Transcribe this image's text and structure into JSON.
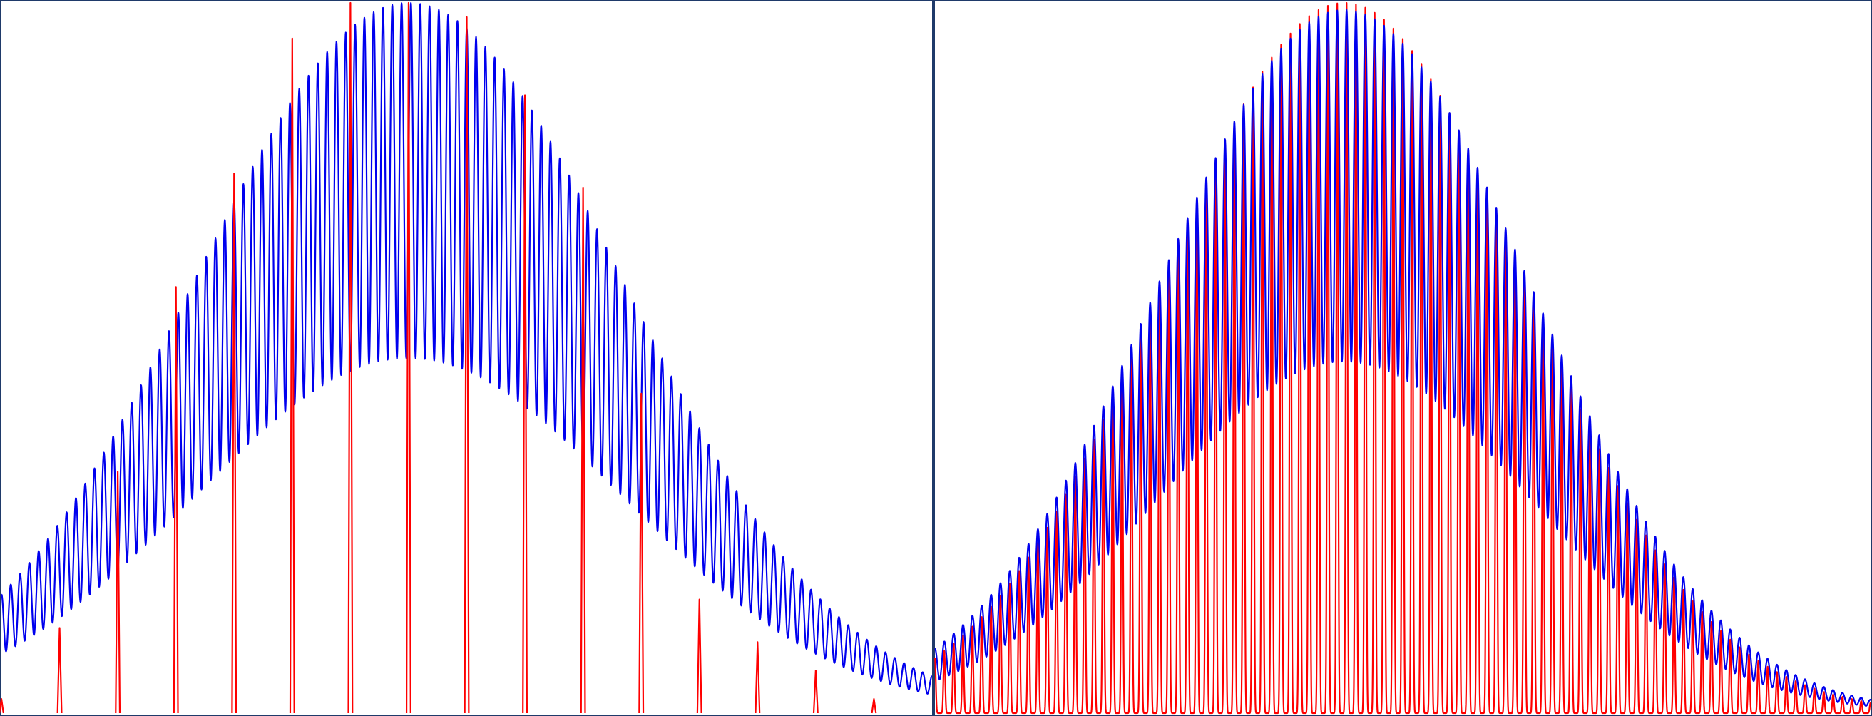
{
  "chart_data": [
    {
      "type": "line",
      "title": "",
      "xlabel": "",
      "ylabel": "",
      "grid": false,
      "xlim": [
        0,
        160
      ],
      "ylim": [
        0,
        1
      ],
      "colors": {
        "blue": "#0000ee",
        "red": "#ff0000",
        "frame": "#1f3a6a"
      },
      "blue_series": {
        "name": "",
        "envelope_center": 70,
        "envelope_sigma": 37,
        "envelope_peak": 1.0,
        "trough_ratio": 0.5,
        "oscillation_period": 1.6
      },
      "red_peaks": {
        "name": "",
        "x": [
          0,
          10,
          20,
          30,
          40,
          50,
          60,
          70,
          80,
          90,
          100,
          110,
          120,
          130,
          140,
          150
        ],
        "y": [
          0.02,
          0.12,
          0.34,
          0.6,
          0.76,
          0.95,
          1.0,
          1.0,
          0.98,
          0.87,
          0.74,
          0.45,
          0.16,
          0.1,
          0.06,
          0.02
        ]
      }
    },
    {
      "type": "line",
      "title": "",
      "xlabel": "",
      "ylabel": "",
      "grid": false,
      "xlim": [
        0,
        160
      ],
      "ylim": [
        0,
        1
      ],
      "colors": {
        "blue": "#0000ee",
        "red": "#ff0000",
        "frame": "#1f3a6a"
      },
      "blue_series": {
        "name": "",
        "envelope_center": 70,
        "envelope_sigma": 32,
        "envelope_peak": 0.99,
        "trough_ratio": 0.5,
        "oscillation_period": 1.6
      },
      "red_series": {
        "name": "",
        "envelope_center": 70,
        "envelope_sigma": 31,
        "envelope_peak": 1.0,
        "oscillation_period": 1.6
      }
    }
  ]
}
